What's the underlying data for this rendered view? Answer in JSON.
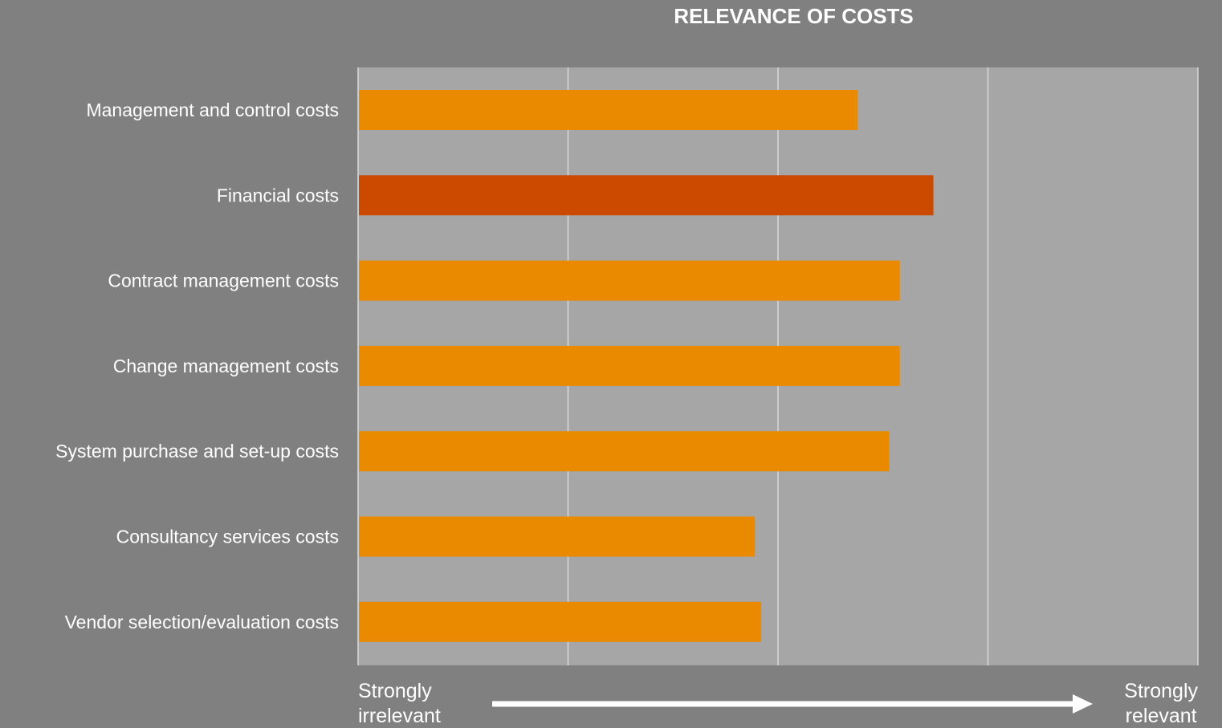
{
  "chart_data": {
    "type": "bar",
    "orientation": "horizontal",
    "title": "RELEVANCE OF COSTS",
    "categories": [
      "Management and control costs",
      "Financial costs",
      "Contract management costs",
      "Change management costs",
      "System purchase and set-up costs",
      "Consultancy services costs",
      "Vendor selection/evaluation costs"
    ],
    "values": [
      3.38,
      3.74,
      3.58,
      3.58,
      3.53,
      2.89,
      2.92
    ],
    "xlim": [
      1,
      5
    ],
    "grid": true,
    "highlight_index": 1,
    "colors": {
      "background": "#808080",
      "plot_area": "#a6a6a6",
      "gridline": "#d9d9d9",
      "bar": "#ea8a00",
      "bar_highlight": "#cc4a00",
      "text": "#ffffff"
    },
    "axis_left_label": [
      "Strongly",
      "irrelevant"
    ],
    "axis_right_label": [
      "Strongly",
      "relevant"
    ]
  }
}
